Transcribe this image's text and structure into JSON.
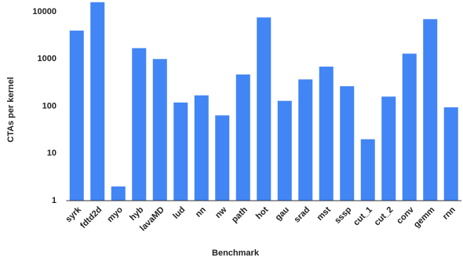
{
  "chart_data": {
    "type": "bar",
    "x_label": "Benchmark",
    "y_label": "CTAs per kernel",
    "categories": [
      "syrk",
      "fdtd2d",
      "myo",
      "hyb",
      "lavaMD",
      "lud",
      "nn",
      "nw",
      "path",
      "hot",
      "gau",
      "srad",
      "mst",
      "sssp",
      "cut_1",
      "cut_2",
      "conv",
      "gemm",
      "rnn"
    ],
    "values": [
      4000,
      16000,
      2,
      1700,
      1000,
      120,
      170,
      64,
      470,
      7600,
      130,
      370,
      690,
      265,
      20,
      160,
      1300,
      7000,
      95
    ],
    "color": "#4285f4",
    "log_scale": true,
    "grid": false,
    "ylim": [
      1,
      17000
    ],
    "yticks": [
      1,
      10,
      100,
      1000,
      10000
    ]
  }
}
